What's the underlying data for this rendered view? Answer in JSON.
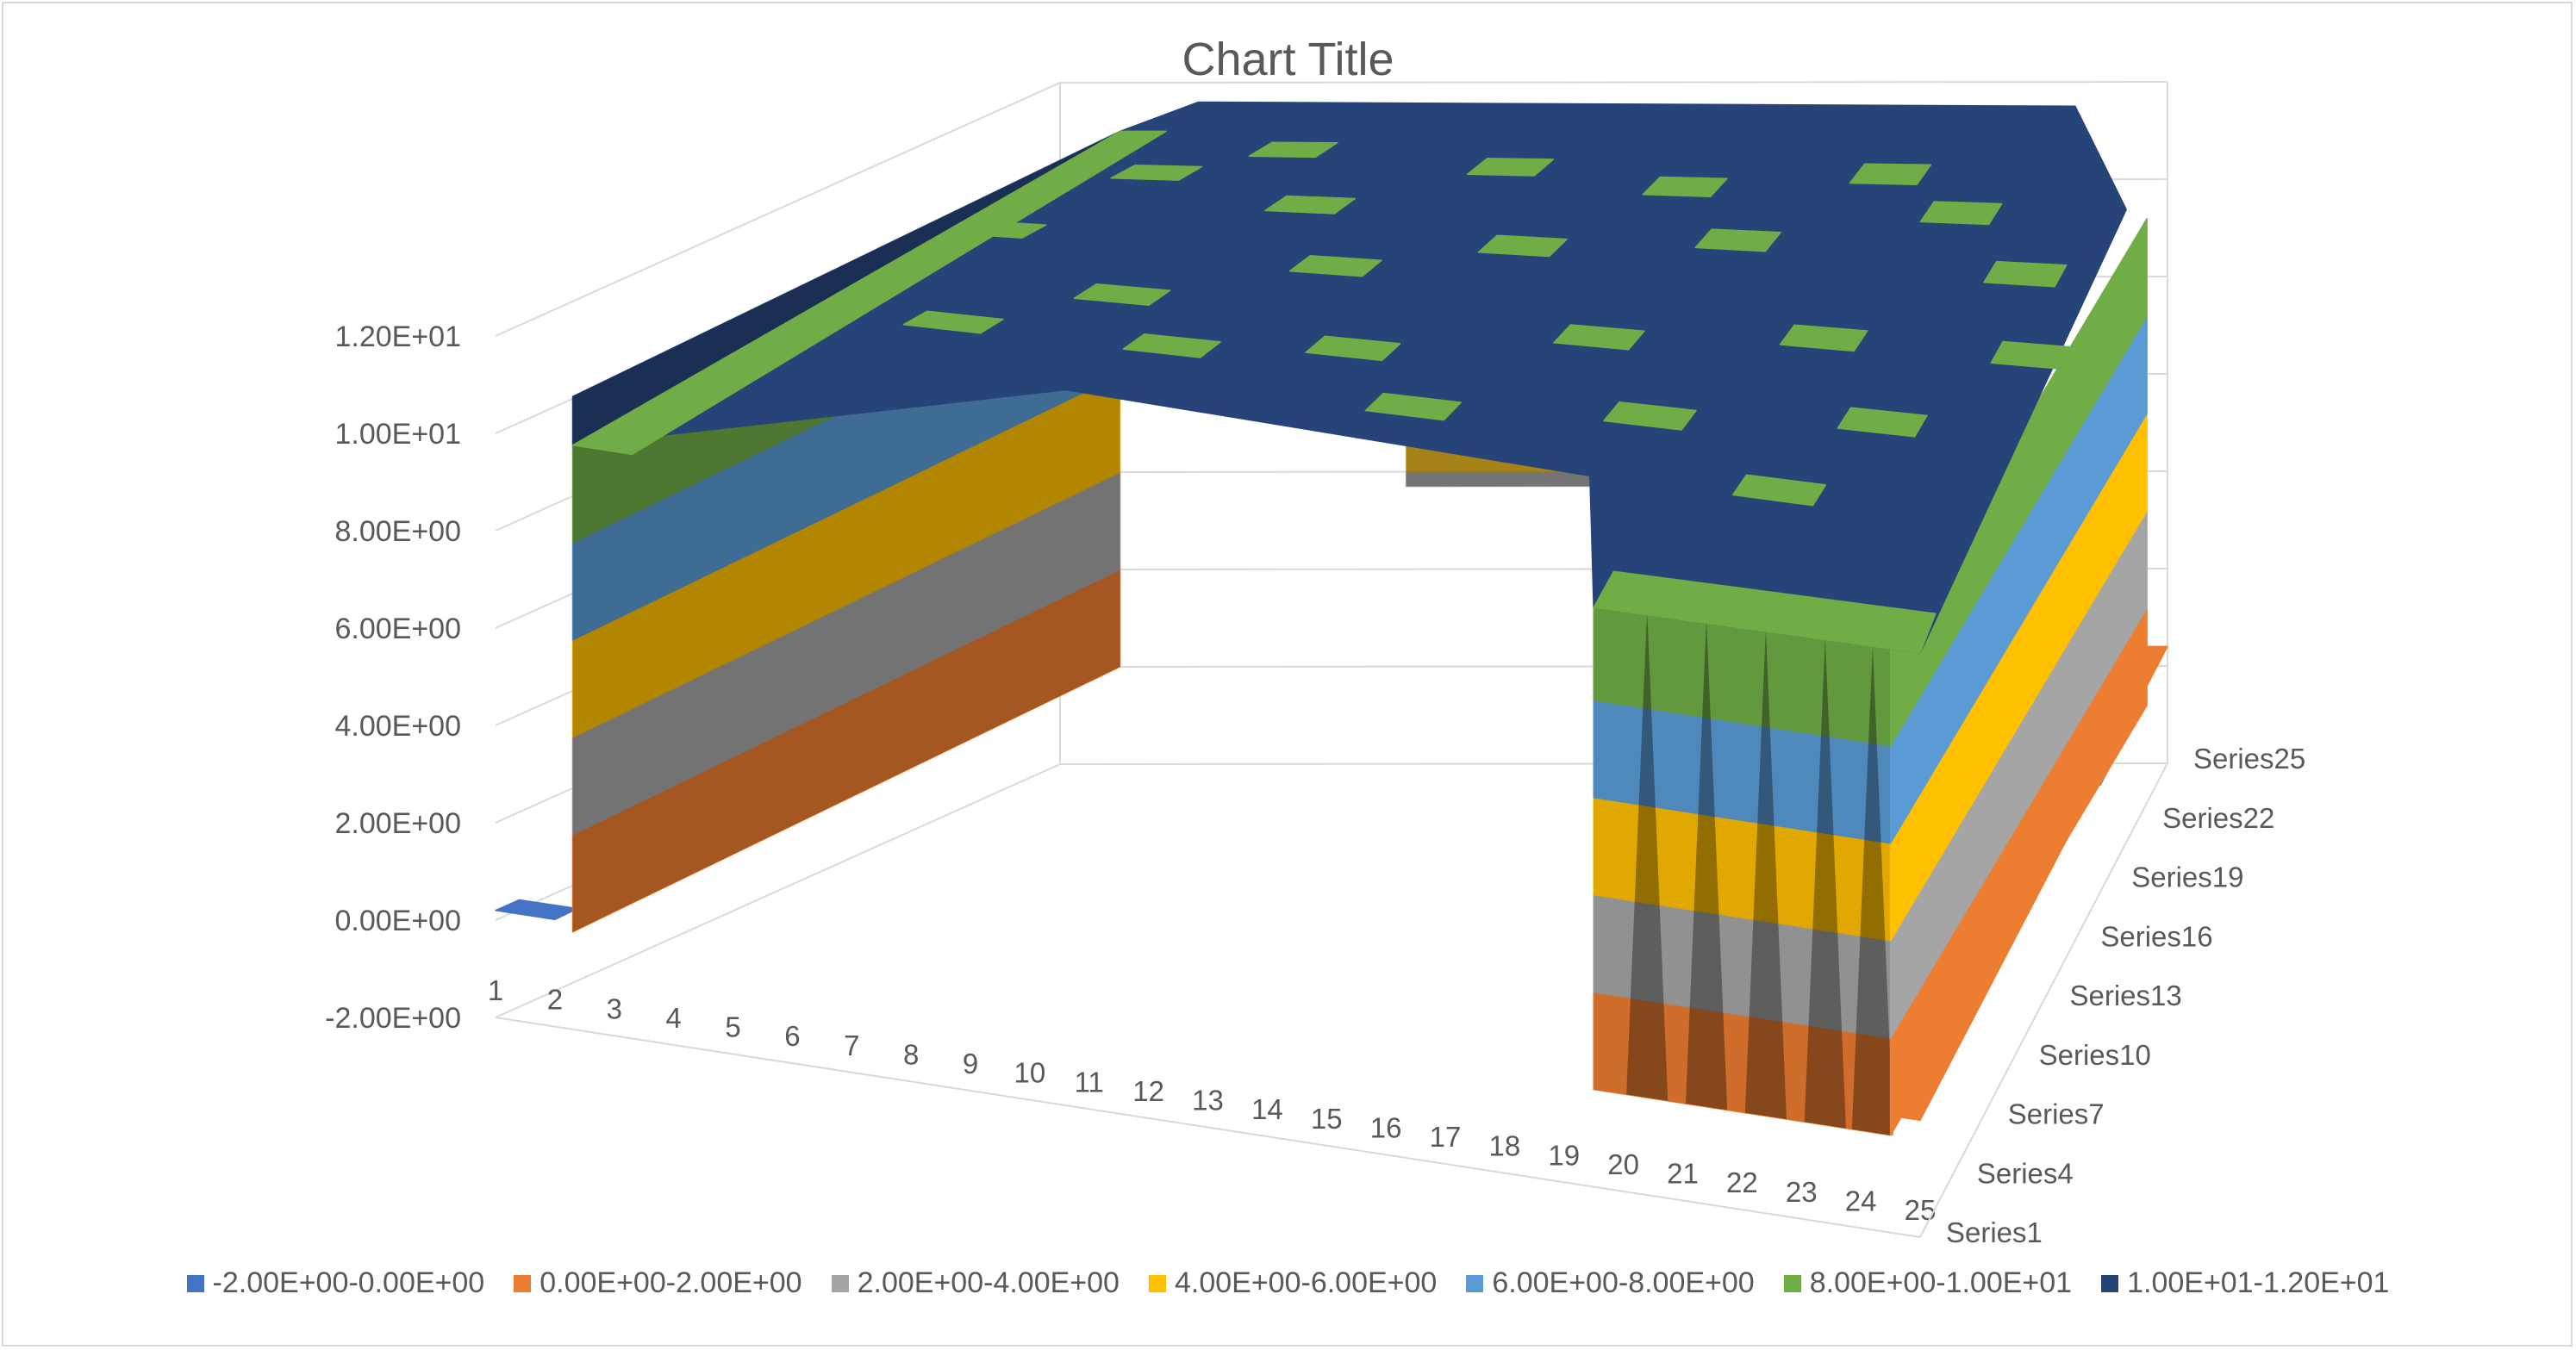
{
  "chart_data": {
    "type": "surface",
    "title": "Chart Title",
    "z_axis": {
      "min": -2.0,
      "max": 12.0,
      "major_unit": 2.0,
      "tick_labels": [
        "-2.00E+00",
        "0.00E+00",
        "2.00E+00",
        "4.00E+00",
        "6.00E+00",
        "8.00E+00",
        "1.00E+01",
        "1.20E+01"
      ]
    },
    "categories": [
      "1",
      "2",
      "3",
      "4",
      "5",
      "6",
      "7",
      "8",
      "9",
      "10",
      "11",
      "12",
      "13",
      "14",
      "15",
      "16",
      "17",
      "18",
      "19",
      "20",
      "21",
      "22",
      "23",
      "24",
      "25"
    ],
    "series_labels": [
      "Series1",
      "Series4",
      "Series7",
      "Series10",
      "Series13",
      "Series16",
      "Series19",
      "Series22",
      "Series25"
    ],
    "series_count": 25,
    "surface_shape": "flat plateau at about 1.0E+01 to 1.2E+01 with steep walls along category 2 and category 19-24; floor near 0.00E+00 elsewhere",
    "plateau_level": 11,
    "floor_level": 0,
    "gridlines": true,
    "legend_position": "bottom",
    "bands": [
      {
        "label": "-2.00E+00-0.00E+00",
        "color": "#4472c4"
      },
      {
        "label": "0.00E+00-2.00E+00",
        "color": "#ed7d31"
      },
      {
        "label": "2.00E+00-4.00E+00",
        "color": "#a5a5a5"
      },
      {
        "label": "4.00E+00-6.00E+00",
        "color": "#ffc000"
      },
      {
        "label": "6.00E+00-8.00E+00",
        "color": "#5b9bd5"
      },
      {
        "label": "8.00E+00-1.00E+01",
        "color": "#70ad47"
      },
      {
        "label": "1.00E+01-1.20E+01",
        "color": "#264478"
      }
    ]
  }
}
